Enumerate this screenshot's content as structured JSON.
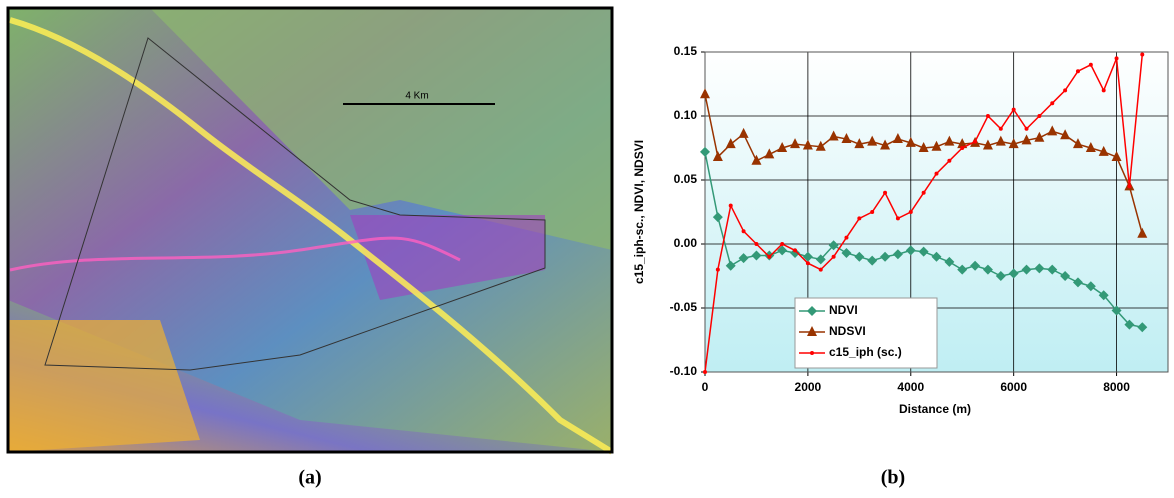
{
  "panel_a": {
    "scale_label": "4 Km",
    "caption": "(a)"
  },
  "chart_data": {
    "type": "line",
    "caption": "(b)",
    "x_label": "Distance (m)",
    "y_label": "c15_iph-sc., NDVI, NDSVI",
    "x": [
      0,
      250,
      500,
      750,
      1000,
      1250,
      1500,
      1750,
      2000,
      2250,
      2500,
      2750,
      3000,
      3250,
      3500,
      3750,
      4000,
      4250,
      4500,
      4750,
      5000,
      5250,
      5500,
      5750,
      6000,
      6250,
      6500,
      6750,
      7000,
      7250,
      7500,
      7750,
      8000,
      8250,
      8500
    ],
    "series": [
      {
        "name": "NDVI",
        "color": "#339977",
        "marker": "diamond",
        "values": [
          0.072,
          0.021,
          -0.017,
          -0.011,
          -0.009,
          -0.009,
          -0.005,
          -0.007,
          -0.01,
          -0.012,
          -0.001,
          -0.007,
          -0.01,
          -0.013,
          -0.01,
          -0.008,
          -0.005,
          -0.006,
          -0.01,
          -0.014,
          -0.02,
          -0.017,
          -0.02,
          -0.025,
          -0.023,
          -0.02,
          -0.019,
          -0.02,
          -0.025,
          -0.03,
          -0.033,
          -0.04,
          -0.052,
          -0.063,
          -0.065
        ]
      },
      {
        "name": "NDSVI",
        "color": "#993300",
        "marker": "triangle",
        "values": [
          0.117,
          0.068,
          0.078,
          0.086,
          0.065,
          0.07,
          0.075,
          0.078,
          0.077,
          0.076,
          0.084,
          0.082,
          0.078,
          0.08,
          0.077,
          0.082,
          0.079,
          0.075,
          0.076,
          0.08,
          0.078,
          0.079,
          0.077,
          0.08,
          0.078,
          0.081,
          0.083,
          0.088,
          0.085,
          0.078,
          0.075,
          0.072,
          0.068,
          0.045,
          0.008
        ]
      },
      {
        "name": "c15_iph (sc.)",
        "color": "#ff0000",
        "marker": "circle",
        "values": [
          -0.1,
          -0.02,
          0.03,
          0.01,
          0.0,
          -0.01,
          0.0,
          -0.005,
          -0.015,
          -0.02,
          -0.01,
          0.005,
          0.02,
          0.025,
          0.04,
          0.02,
          0.025,
          0.04,
          0.055,
          0.065,
          0.075,
          0.08,
          0.1,
          0.09,
          0.105,
          0.09,
          0.1,
          0.11,
          0.12,
          0.135,
          0.14,
          0.12,
          0.145,
          0.045,
          0.148
        ]
      }
    ],
    "xlim": [
      0,
      9000
    ],
    "xticks": [
      0,
      2000,
      4000,
      6000,
      8000
    ],
    "ylim": [
      -0.1,
      0.15
    ],
    "yticks": [
      {
        "value": -0.1,
        "label": "-0.10"
      },
      -0.05,
      {
        "value": 0,
        "label": "0.00"
      },
      0.05,
      {
        "value": 0.1,
        "label": "0.10"
      },
      0.15
    ],
    "grid": true,
    "legend": "lower left"
  }
}
